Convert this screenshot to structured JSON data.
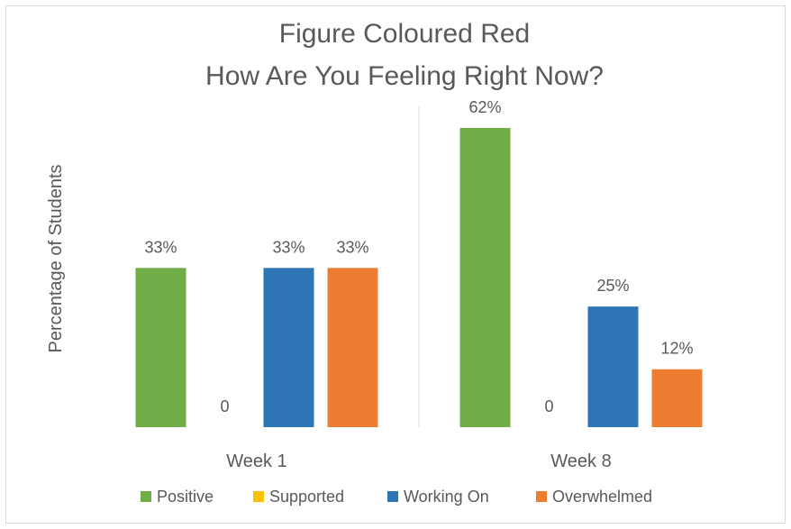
{
  "chart_data": {
    "type": "bar",
    "title": "Figure Coloured Red",
    "subtitle": "How Are You Feeling Right Now?",
    "xlabel": "",
    "ylabel": "Percentage of Students",
    "categories": [
      "Week 1",
      "Week 8"
    ],
    "series": [
      {
        "name": "Positive",
        "color": "#70ad47",
        "values": [
          33,
          62
        ],
        "labels": [
          "33%",
          "62%"
        ]
      },
      {
        "name": "Supported",
        "color": "#ffc000",
        "values": [
          0,
          0
        ],
        "labels": [
          "0",
          "0"
        ]
      },
      {
        "name": "Working On",
        "color": "#2e75b6",
        "values": [
          33,
          25
        ],
        "labels": [
          "33%",
          "25%"
        ]
      },
      {
        "name": "Overwhelmed",
        "color": "#ed7d31",
        "values": [
          33,
          12
        ],
        "labels": [
          "33%",
          "12%"
        ]
      }
    ],
    "ylim": [
      0,
      62
    ],
    "grid": false,
    "legend_position": "bottom",
    "category_separator": true
  }
}
